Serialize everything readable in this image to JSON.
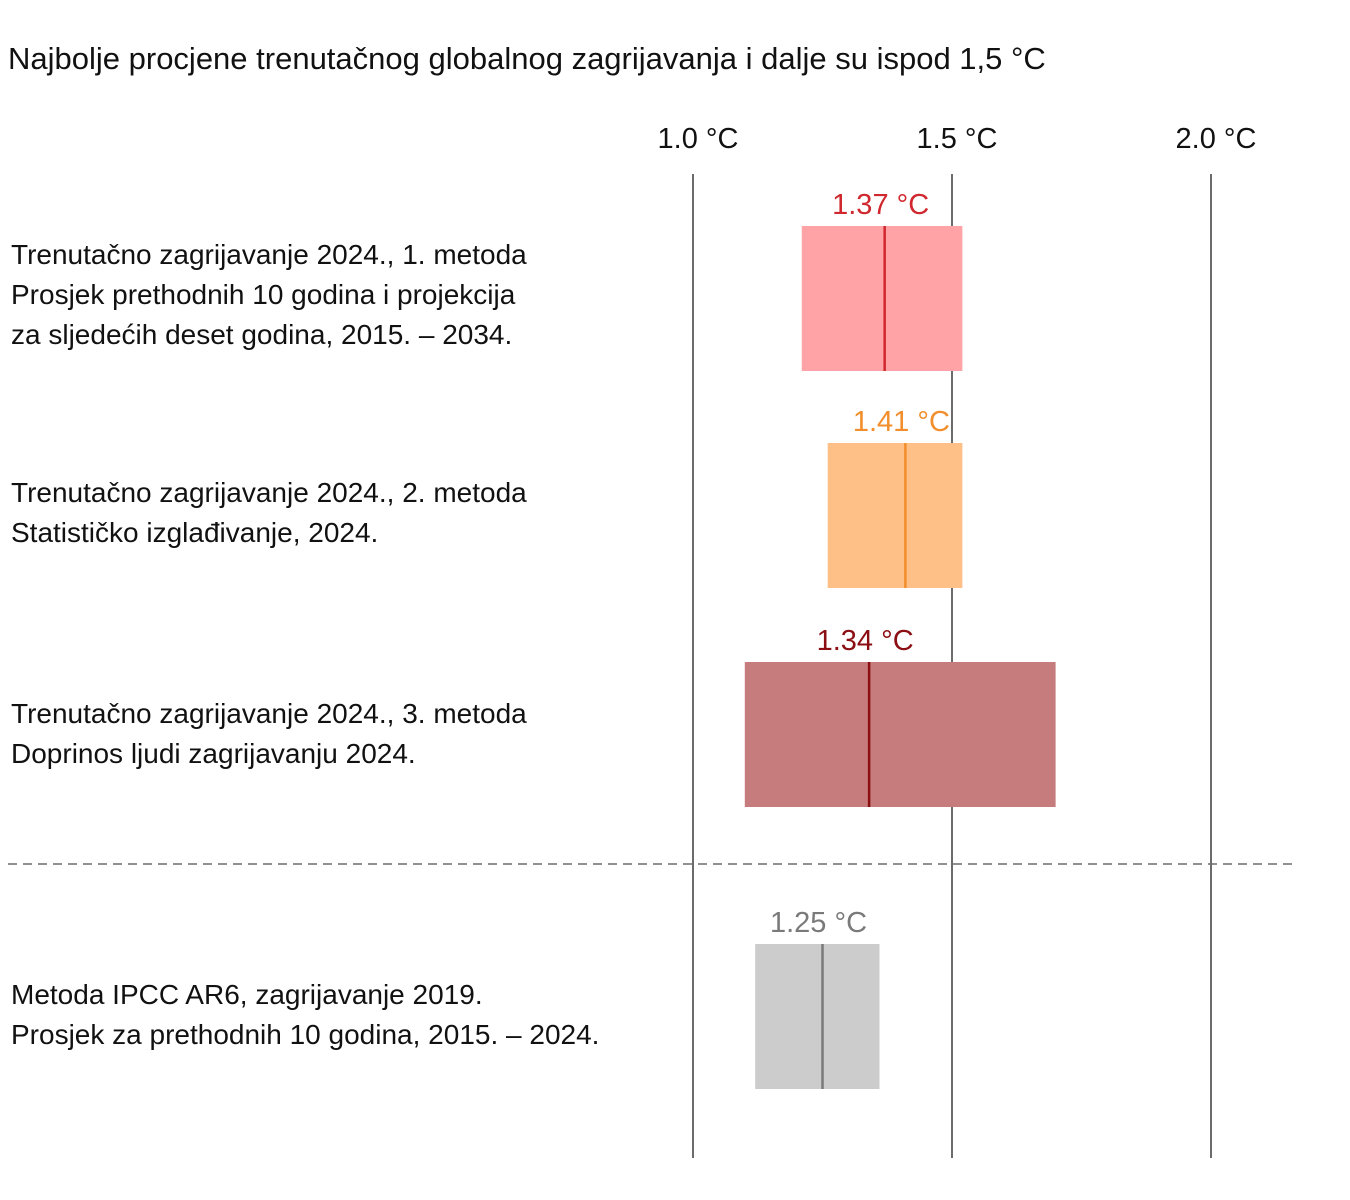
{
  "chart_data": {
    "type": "bar",
    "title": "Najbolje procjene trenutačnog globalnog zagrijavanja i dalje su ispod 1,5 °C",
    "xlabel": "",
    "ylabel": "",
    "unit": "°C",
    "xlim": [
      0.9,
      2.15
    ],
    "grid": true,
    "x_ticks": [
      {
        "value": 1.0,
        "label": "1.0 °C"
      },
      {
        "value": 1.5,
        "label": "1.5 °C"
      },
      {
        "value": 2.0,
        "label": "2.0 °C"
      }
    ],
    "rows": [
      {
        "label_lines": [
          "Trenutačno zagrijavanje 2024., 1. metoda",
          "Prosjek prethodnih 10 godina i projekcija",
          "za sljedećih deset godina, 2015. – 2034."
        ],
        "best_estimate": 1.37,
        "value_label": "1.37 °C",
        "low": 1.21,
        "high": 1.52,
        "fill_color": "#ffa3a6",
        "line_color": "#d0282e"
      },
      {
        "label_lines": [
          "Trenutačno zagrijavanje 2024., 2. metoda",
          "Statističko izglađivanje, 2024."
        ],
        "best_estimate": 1.41,
        "value_label": "1.41 °C",
        "low": 1.26,
        "high": 1.52,
        "fill_color": "#fec087",
        "line_color": "#f28e2b"
      },
      {
        "label_lines": [
          "Trenutačno zagrijavanje 2024., 3. metoda",
          "Doprinos ljudi zagrijavanju 2024."
        ],
        "best_estimate": 1.34,
        "value_label": "1.34 °C",
        "low": 1.1,
        "high": 1.7,
        "fill_color": "#c67c7c",
        "line_color": "#8b0f12"
      },
      {
        "label_lines": [
          "Metoda IPCC AR6, zagrijavanje 2019.",
          "Prosjek za prethodnih 10 godina, 2015. – 2024."
        ],
        "best_estimate": 1.25,
        "value_label": "1.25 °C",
        "low": 1.12,
        "high": 1.36,
        "fill_color": "#cccccc",
        "line_color": "#7a7a7a",
        "separated": true
      }
    ]
  }
}
